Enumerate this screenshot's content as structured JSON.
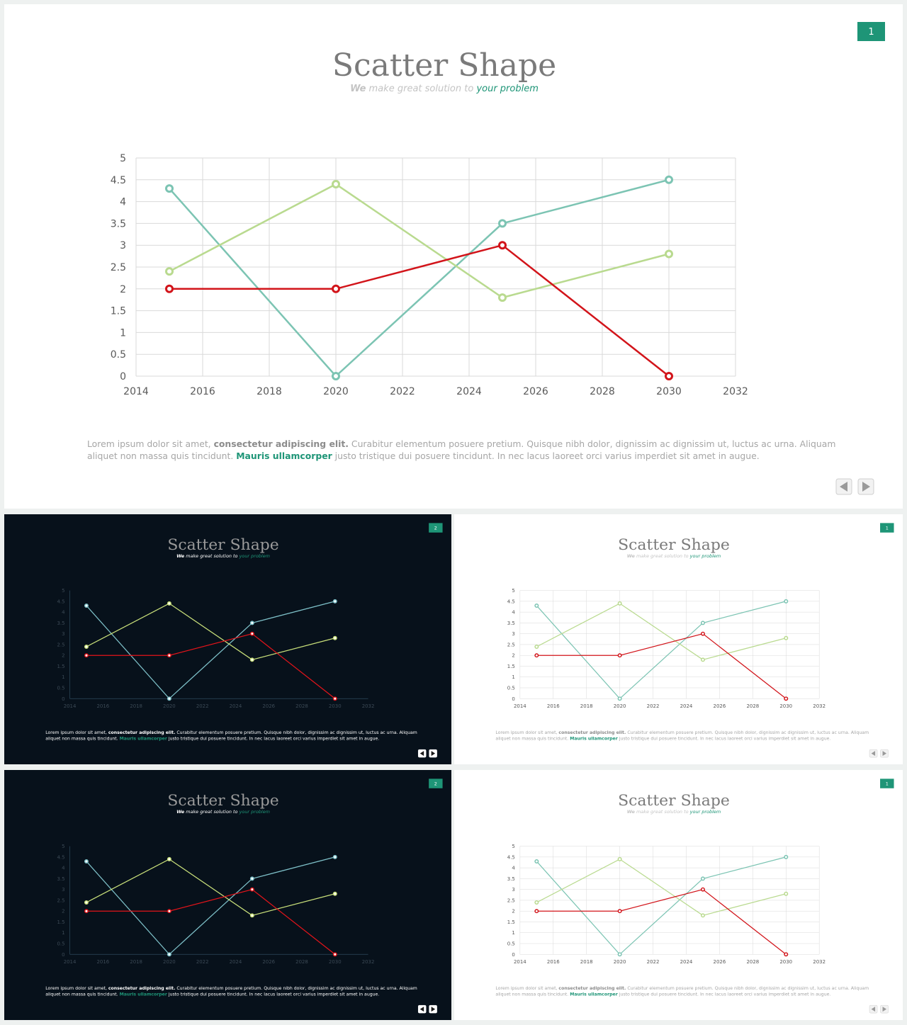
{
  "slides": [
    {
      "id": "main",
      "theme": "light",
      "page_number": "1"
    },
    {
      "id": "dark-a",
      "theme": "dark",
      "page_number": "2"
    },
    {
      "id": "light-a",
      "theme": "light",
      "page_number": "1"
    },
    {
      "id": "dark-b",
      "theme": "dark",
      "page_number": "2"
    },
    {
      "id": "light-b",
      "theme": "light",
      "page_number": "1"
    }
  ],
  "title": "Scatter Shape",
  "subtitle": {
    "prefix": "We",
    "middle": " make great solution to ",
    "highlight": "your problem"
  },
  "body_text": {
    "line1": [
      {
        "t": "Lorem ipsum dolor sit amet, ",
        "style": "normal"
      },
      {
        "t": "consectetur adipiscing elit.",
        "style": "bold"
      },
      {
        "t": " Curabitur elementum posuere pretium. Quisque nibh dolor, dignissim ac dignissim ut, luctus ac urna. Aliquam",
        "style": "normal"
      }
    ],
    "line2": [
      {
        "t": "aliquet non massa quis tincidunt. ",
        "style": "normal"
      },
      {
        "t": "Mauris ullamcorper",
        "style": "accent"
      },
      {
        "t": " justo tristique dui posuere tincidunt. In nec lacus laoreet orci varius imperdiet sit amet in augue.",
        "style": "normal"
      }
    ]
  },
  "nav": {
    "prev_icon": "triangle-left-icon",
    "next_icon": "triangle-right-icon"
  },
  "colors": {
    "accent": "#1e9577",
    "title_gray": "#7a7a7a",
    "text_gray": "#a6a6a6",
    "series_teal": "#7cc4b3",
    "series_green": "#b9da8f",
    "series_red": "#d2141a",
    "dark_series_teal": "#7ec1c9",
    "dark_series_green": "#c9e07a",
    "dark_series_red": "#e3141a"
  },
  "chart_data": {
    "type": "scatter",
    "title": "",
    "xlabel": "",
    "ylabel": "",
    "xlim": [
      2014,
      2032
    ],
    "ylim": [
      0,
      5
    ],
    "x_ticks": [
      "2014",
      "2016",
      "2018",
      "2020",
      "2022",
      "2024",
      "2026",
      "2028",
      "2030",
      "2032"
    ],
    "y_ticks": [
      "0",
      "0.5",
      "1",
      "1.5",
      "2",
      "2.5",
      "3",
      "3.5",
      "4",
      "4.5",
      "5"
    ],
    "grid": true,
    "x": [
      2015,
      2020,
      2025,
      2030
    ],
    "series": [
      {
        "key": "teal",
        "values": [
          4.3,
          0,
          3.5,
          4.5
        ]
      },
      {
        "key": "green",
        "values": [
          2.4,
          4.4,
          1.8,
          2.8
        ]
      },
      {
        "key": "red",
        "values": [
          2,
          2,
          3,
          0
        ]
      }
    ]
  }
}
